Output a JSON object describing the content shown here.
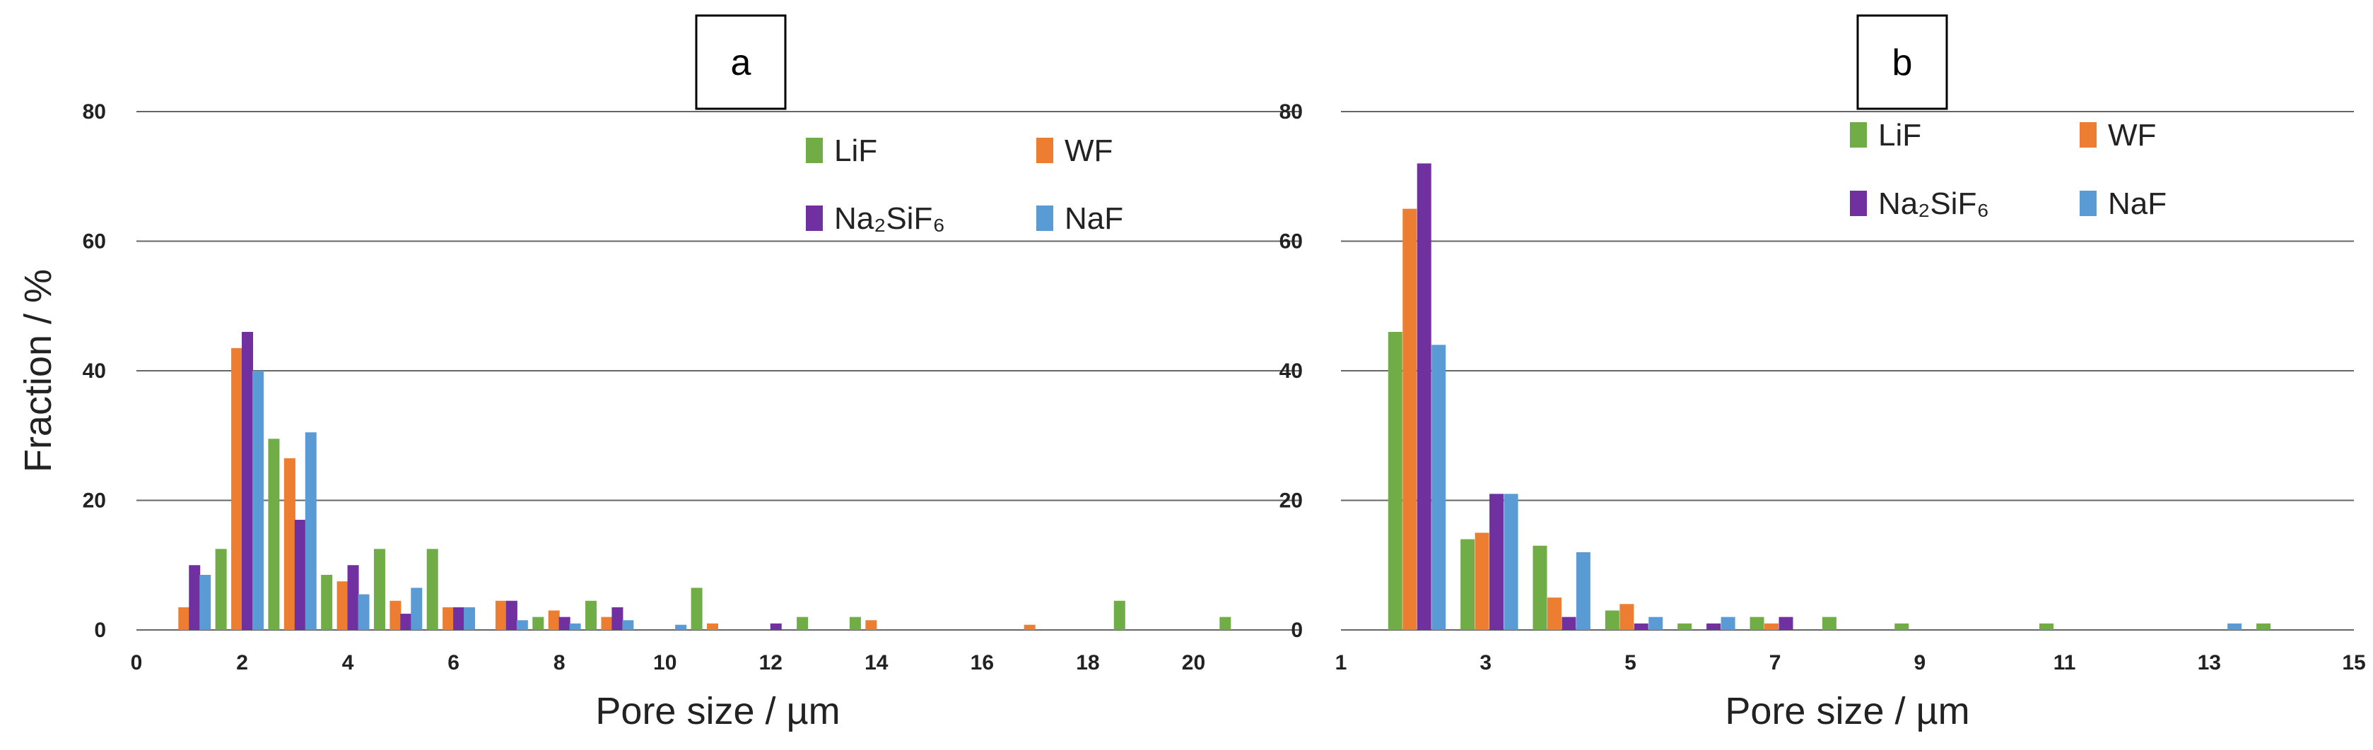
{
  "colors": {
    "LiF": "#70ad47",
    "WF": "#ed7d31",
    "Na2SiF6": "#7030a0",
    "NaF": "#5b9bd5",
    "grid": "#666666"
  },
  "chart_data": [
    {
      "type": "bar",
      "panel_label": "a",
      "xlabel": "Pore size / µm",
      "ylabel": "Fraction / %",
      "xlim": [
        0,
        22
      ],
      "ylim": [
        0,
        80
      ],
      "x_ticks": [
        "0",
        "2",
        "4",
        "6",
        "8",
        "10",
        "12",
        "14",
        "16",
        "18",
        "20"
      ],
      "y_ticks": [
        "0",
        "20",
        "40",
        "60",
        "80"
      ],
      "grid": true,
      "legend": {
        "placement": "top-right",
        "order": [
          "LiF",
          "WF",
          "Na2SiF6",
          "NaF"
        ]
      },
      "series": [
        {
          "name": "WF",
          "legend_text": "WF",
          "x": [
            0.9,
            1.9,
            2.9,
            3.9,
            4.9,
            5.9,
            6.9,
            7.9,
            8.9,
            10.9,
            13.9,
            16.9
          ],
          "values": [
            3.5,
            43.5,
            26.5,
            7.5,
            4.5,
            3.5,
            4.5,
            3.0,
            2.0,
            1.0,
            1.5,
            0.8
          ]
        },
        {
          "name": "Na2SiF6",
          "legend_text": "Na₂SiF₆",
          "x": [
            1.1,
            2.1,
            3.1,
            4.1,
            5.1,
            6.1,
            7.1,
            8.1,
            9.1,
            12.1
          ],
          "values": [
            10.0,
            46.0,
            17.0,
            10.0,
            2.5,
            3.5,
            4.5,
            2.0,
            3.5,
            1.0
          ]
        },
        {
          "name": "NaF",
          "legend_text": "NaF",
          "x": [
            1.3,
            2.3,
            3.3,
            4.3,
            5.3,
            6.3,
            7.3,
            8.3,
            9.3,
            10.3
          ],
          "values": [
            8.5,
            40.0,
            30.5,
            5.5,
            6.5,
            3.5,
            1.5,
            1.0,
            1.5,
            0.8
          ]
        },
        {
          "name": "LiF",
          "legend_text": "LiF",
          "x": [
            1.6,
            2.6,
            3.6,
            4.6,
            5.6,
            7.6,
            8.6,
            10.6,
            12.6,
            13.6,
            18.6,
            20.6
          ],
          "values": [
            12.5,
            29.5,
            8.5,
            12.5,
            12.5,
            2.0,
            4.5,
            6.5,
            2.0,
            2.0,
            4.5,
            2.0
          ]
        }
      ]
    },
    {
      "type": "bar",
      "panel_label": "b",
      "xlabel": "Pore size / µm",
      "ylabel": "",
      "xlim": [
        1,
        15
      ],
      "ylim": [
        0,
        80
      ],
      "x_ticks": [
        "1",
        "3",
        "5",
        "7",
        "9",
        "11",
        "13",
        "15"
      ],
      "y_ticks": [
        "0",
        "20",
        "40",
        "60",
        "80"
      ],
      "grid": true,
      "legend": {
        "placement": "top-right",
        "order": [
          "LiF",
          "WF",
          "Na2SiF6",
          "NaF"
        ]
      },
      "series": [
        {
          "name": "LiF",
          "legend_text": "LiF",
          "x": [
            1.75,
            2.75,
            3.75,
            4.75,
            5.75,
            6.75,
            7.75,
            8.75,
            10.75,
            13.75
          ],
          "values": [
            46.0,
            14.0,
            13.0,
            3.0,
            1.0,
            2.0,
            2.0,
            1.0,
            1.0,
            1.0
          ]
        },
        {
          "name": "WF",
          "legend_text": "WF",
          "x": [
            1.95,
            2.95,
            3.95,
            4.95,
            6.95
          ],
          "values": [
            65.0,
            15.0,
            5.0,
            4.0,
            1.0
          ]
        },
        {
          "name": "Na2SiF6",
          "legend_text": "Na₂SiF₆",
          "x": [
            2.15,
            3.15,
            4.15,
            5.15,
            6.15,
            7.15
          ],
          "values": [
            72.0,
            21.0,
            2.0,
            1.0,
            1.0,
            2.0
          ]
        },
        {
          "name": "NaF",
          "legend_text": "NaF",
          "x": [
            2.35,
            3.35,
            4.35,
            5.35,
            6.35,
            13.35
          ],
          "values": [
            44.0,
            21.0,
            12.0,
            2.0,
            2.0,
            1.0
          ]
        }
      ]
    }
  ]
}
